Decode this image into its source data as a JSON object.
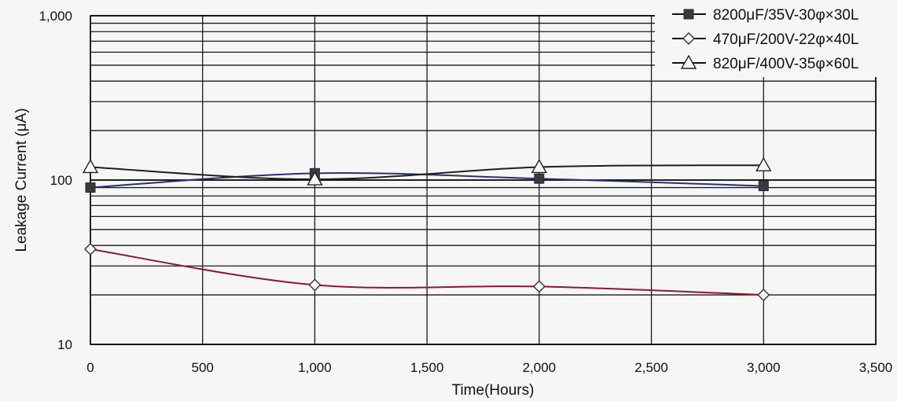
{
  "chart_data": {
    "type": "line",
    "title": "",
    "xlabel": "Time(Hours)",
    "ylabel": "Leakage Current (μA)",
    "x_scale": "linear",
    "y_scale": "log",
    "xlim": [
      0,
      3500
    ],
    "ylim": [
      10,
      1000
    ],
    "grid": true,
    "legend_position": "top-right",
    "x_ticks": [
      {
        "value": 0,
        "label": "0"
      },
      {
        "value": 500,
        "label": "500"
      },
      {
        "value": 1000,
        "label": "1,000"
      },
      {
        "value": 1500,
        "label": "1,500"
      },
      {
        "value": 2000,
        "label": "2,000"
      },
      {
        "value": 2500,
        "label": "2,500"
      },
      {
        "value": 3000,
        "label": "3,000"
      },
      {
        "value": 3500,
        "label": "3,500"
      }
    ],
    "y_ticks": [
      {
        "value": 10,
        "label": "10"
      },
      {
        "value": 100,
        "label": "100"
      },
      {
        "value": 1000,
        "label": "1,000"
      }
    ],
    "series": [
      {
        "name": "8200μF/35V-30φ×30L",
        "marker": "square-filled",
        "color": "#2a2f78",
        "x": [
          0,
          1000,
          2000,
          3000
        ],
        "y": [
          90,
          110,
          102,
          92
        ]
      },
      {
        "name": "470μF/200V-22φ×40L",
        "marker": "diamond-open",
        "color": "#8a1a2e",
        "x": [
          0,
          1000,
          2000,
          3000
        ],
        "y": [
          38,
          23,
          22.5,
          20
        ]
      },
      {
        "name": "820μF/400V-35φ×60L",
        "marker": "triangle-open",
        "color": "#152418",
        "x": [
          0,
          1000,
          2000,
          3000
        ],
        "y": [
          120,
          101,
          120,
          123
        ]
      }
    ]
  }
}
